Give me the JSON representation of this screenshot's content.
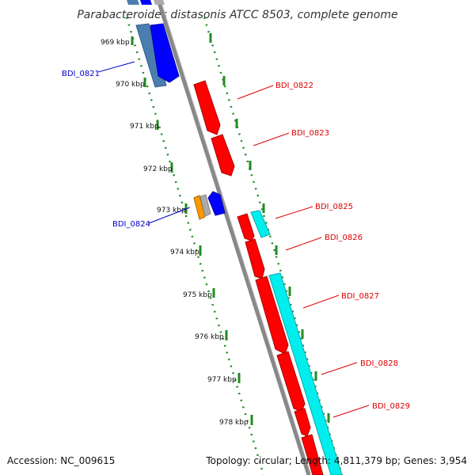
{
  "title": "Parabacteroides distasonis ATCC 8503, complete genome",
  "footer": {
    "accession": "Accession: NC_009615",
    "summary": "Topology: circular; Length: 4,811,379 bp; Genes: 3,954"
  },
  "ticks": [
    "969 kbp",
    "970 kbp",
    "971 kbp",
    "972 kbp",
    "973 kbp",
    "974 kbp",
    "975 kbp",
    "976 kbp",
    "977 kbp",
    "978 kbp"
  ],
  "gene_labels": [
    {
      "text": "BDI_0821",
      "color": "#0000cc"
    },
    {
      "text": "BDI_0822",
      "color": "#dd0000"
    },
    {
      "text": "BDI_0823",
      "color": "#dd0000"
    },
    {
      "text": "BDI_0824",
      "color": "#0000cc"
    },
    {
      "text": "BDI_0825",
      "color": "#dd0000"
    },
    {
      "text": "BDI_0826",
      "color": "#dd0000"
    },
    {
      "text": "BDI_0827",
      "color": "#dd0000"
    },
    {
      "text": "BDI_0828",
      "color": "#dd0000"
    },
    {
      "text": "BDI_0829",
      "color": "#dd0000"
    }
  ],
  "colors": {
    "forward_cds": "#ff0000",
    "reverse_cds": "#0000ff",
    "forward_feature": "#00eeee",
    "reverse_feature": "#4a7eb0",
    "other_feature": "#ff9900",
    "grey_feature": "#aaaaaa",
    "backbone": "#888888",
    "ticks": "#228b22"
  }
}
